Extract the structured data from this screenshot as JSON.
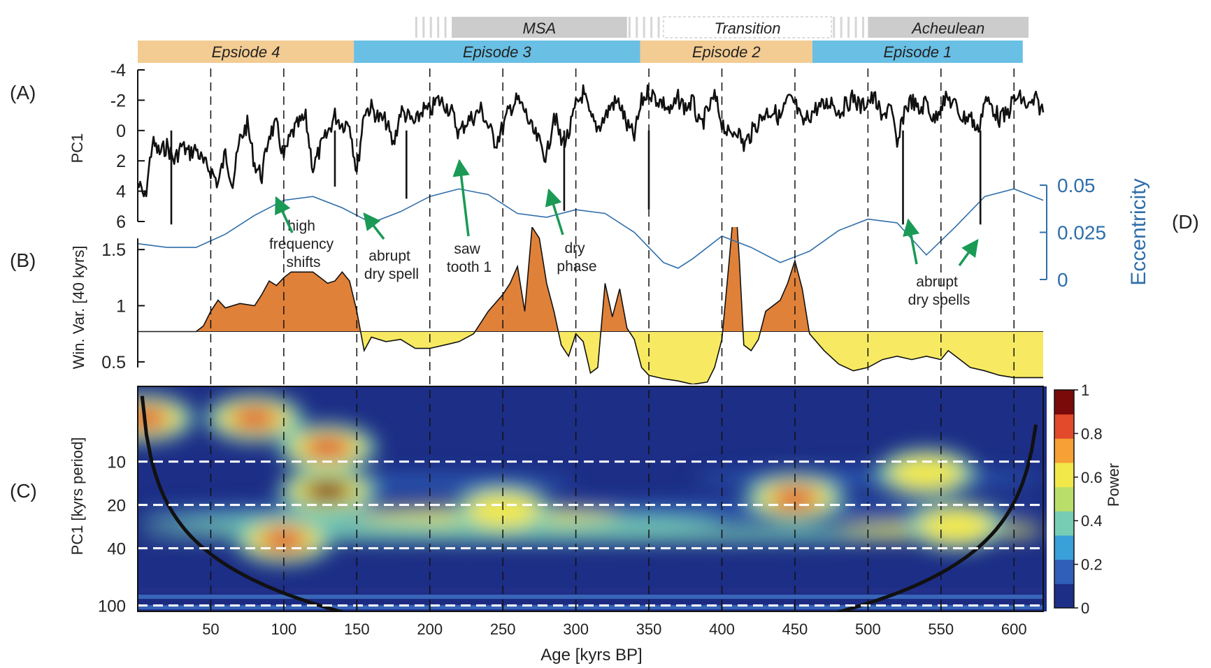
{
  "figure": {
    "panel_labels": {
      "a": "(A)",
      "b": "(B)",
      "c": "(C)",
      "d": "(D)"
    }
  },
  "colors": {
    "episode_orange": "#f3cc93",
    "episode_blue": "#69bfe4",
    "archaeo_gray": "#cccccc",
    "pc1_line": "#111111",
    "eccentricity": "#2f6eaa",
    "variance_high": "#e0813a",
    "variance_low": "#f7ea62",
    "arrow": "#1a9a55",
    "power_low": "#1d2e86",
    "power_high": "#7a0a0a"
  },
  "chart_data": [
    {
      "type": "bar",
      "name": "archaeological-periods",
      "periods": [
        {
          "label": "MSA",
          "start": 215,
          "end": 335
        },
        {
          "label": "Transition",
          "start": 360,
          "end": 475
        },
        {
          "label": "Acheulean",
          "start": 500,
          "end": 610
        }
      ],
      "episodes": [
        {
          "label": "Epsiode 4",
          "start": 0,
          "end": 148,
          "color": "orange"
        },
        {
          "label": "Episode 3",
          "start": 148,
          "end": 344,
          "color": "blue"
        },
        {
          "label": "Episode 2",
          "start": 344,
          "end": 462,
          "color": "orange"
        },
        {
          "label": "Episode 1",
          "start": 462,
          "end": 606,
          "color": "blue"
        }
      ]
    },
    {
      "type": "line",
      "panel": "A",
      "ylabel": "PC1",
      "y_ticks": [
        -4,
        -2,
        0,
        2,
        4,
        6
      ],
      "ylim": [
        -4,
        6
      ],
      "y_inverted": true,
      "x": [
        0,
        5,
        10,
        15,
        20,
        25,
        30,
        35,
        40,
        45,
        50,
        55,
        60,
        65,
        70,
        75,
        80,
        85,
        90,
        95,
        100,
        105,
        110,
        115,
        120,
        125,
        130,
        135,
        140,
        145,
        150,
        155,
        160,
        165,
        170,
        175,
        180,
        185,
        190,
        195,
        200,
        205,
        210,
        215,
        220,
        225,
        230,
        235,
        240,
        245,
        250,
        255,
        260,
        265,
        270,
        275,
        280,
        285,
        290,
        295,
        300,
        305,
        310,
        315,
        320,
        325,
        330,
        335,
        340,
        345,
        350,
        355,
        360,
        365,
        370,
        375,
        380,
        385,
        390,
        395,
        400,
        405,
        410,
        415,
        420,
        425,
        430,
        435,
        440,
        445,
        450,
        455,
        460,
        465,
        470,
        475,
        480,
        485,
        490,
        495,
        500,
        505,
        510,
        515,
        520,
        525,
        530,
        535,
        540,
        545,
        550,
        555,
        560,
        565,
        570,
        575,
        580,
        585,
        590,
        595,
        600,
        605,
        610,
        615,
        620
      ],
      "y": [
        3.5,
        4.5,
        0.8,
        1.5,
        1.0,
        2.0,
        1.0,
        1.5,
        1.2,
        2.2,
        2.6,
        3.5,
        1.5,
        3.5,
        0.6,
        -0.4,
        2.2,
        3.0,
        0.2,
        -0.3,
        1.8,
        0.3,
        -0.4,
        -0.8,
        2.5,
        1.2,
        0.2,
        -1.0,
        -0.4,
        -0.6,
        2.8,
        -1.3,
        -1.5,
        -0.8,
        -0.6,
        1.0,
        -1.3,
        -0.9,
        -0.4,
        -1.4,
        -1.2,
        -2.0,
        -1.8,
        -1.2,
        0.2,
        -0.6,
        -0.9,
        -1.4,
        -0.3,
        0.8,
        -0.2,
        -1.5,
        -2.0,
        -1.3,
        0.0,
        0.8,
        1.8,
        -1.2,
        0.8,
        0.3,
        -1.6,
        -2.5,
        -0.8,
        -0.2,
        -0.9,
        -1.8,
        -1.8,
        -0.3,
        0.4,
        -1.9,
        -2.6,
        -2.1,
        -1.8,
        -1.2,
        -2.1,
        -1.5,
        -1.9,
        -0.2,
        -1.2,
        -2.2,
        -0.6,
        0.4,
        -0.2,
        1.0,
        0.2,
        -0.6,
        -1.2,
        -1.3,
        -0.8,
        -2.0,
        -1.8,
        -0.4,
        -1.0,
        -1.5,
        -1.6,
        -2.0,
        -1.2,
        -1.7,
        -2.2,
        -1.5,
        -2.0,
        -2.1,
        -0.6,
        -2.0,
        1.2,
        -1.4,
        -2.0,
        -1.2,
        -2.0,
        -0.6,
        -1.8,
        -2.1,
        -1.6,
        -0.8,
        -1.0,
        0.1,
        -2.0,
        -1.6,
        -0.8,
        -1.0,
        -2.1,
        -2.1,
        -1.5,
        -2.0,
        -1.2
      ],
      "annotations": [
        "high frequency shifts",
        "abrupt dry spell",
        "saw tooth 1",
        "dry phase",
        "abrupt dry spells"
      ]
    },
    {
      "type": "line",
      "panel": "D",
      "ylabel": "Eccentricity",
      "y_ticks": [
        0,
        0.025,
        0.05
      ],
      "ylim": [
        0,
        0.05
      ],
      "x": [
        0,
        20,
        40,
        60,
        80,
        100,
        120,
        140,
        160,
        180,
        200,
        220,
        240,
        260,
        280,
        300,
        320,
        340,
        360,
        370,
        380,
        400,
        420,
        440,
        460,
        480,
        500,
        520,
        540,
        560,
        580,
        600,
        620
      ],
      "y": [
        0.019,
        0.017,
        0.017,
        0.024,
        0.034,
        0.042,
        0.044,
        0.038,
        0.03,
        0.036,
        0.044,
        0.048,
        0.045,
        0.035,
        0.033,
        0.037,
        0.035,
        0.025,
        0.009,
        0.006,
        0.011,
        0.023,
        0.017,
        0.009,
        0.015,
        0.026,
        0.032,
        0.03,
        0.013,
        0.028,
        0.044,
        0.048,
        0.042
      ]
    },
    {
      "type": "area",
      "panel": "B",
      "ylabel": "Win. Var. [40 kyrs]",
      "y_ticks": [
        0.5,
        1,
        1.5
      ],
      "ylim": [
        0.3,
        1.7
      ],
      "threshold": 0.77,
      "x": [
        0,
        20,
        40,
        45,
        50,
        55,
        60,
        70,
        80,
        85,
        90,
        95,
        100,
        105,
        110,
        115,
        120,
        125,
        130,
        135,
        140,
        145,
        150,
        155,
        160,
        170,
        180,
        190,
        200,
        210,
        220,
        230,
        240,
        250,
        255,
        260,
        265,
        270,
        275,
        280,
        285,
        290,
        295,
        300,
        305,
        310,
        315,
        320,
        325,
        330,
        335,
        340,
        345,
        350,
        360,
        370,
        380,
        390,
        395,
        400,
        405,
        408,
        410,
        412,
        415,
        420,
        425,
        430,
        435,
        440,
        445,
        450,
        455,
        460,
        470,
        480,
        490,
        500,
        510,
        520,
        530,
        540,
        550,
        555,
        560,
        570,
        580,
        590,
        600,
        610,
        620
      ],
      "y": [
        0.77,
        0.77,
        0.77,
        0.82,
        0.95,
        1.05,
        0.98,
        1.02,
        1.0,
        1.1,
        1.22,
        1.18,
        1.25,
        1.3,
        1.3,
        1.3,
        1.3,
        1.25,
        1.2,
        1.22,
        1.3,
        1.22,
        0.95,
        0.6,
        0.72,
        0.68,
        0.7,
        0.62,
        0.62,
        0.65,
        0.68,
        0.75,
        0.95,
        1.1,
        1.2,
        1.35,
        0.95,
        1.7,
        1.6,
        1.2,
        0.95,
        0.65,
        0.55,
        0.75,
        0.68,
        0.4,
        0.45,
        1.2,
        0.9,
        1.15,
        0.8,
        0.7,
        0.45,
        0.38,
        0.35,
        0.33,
        0.3,
        0.32,
        0.45,
        0.7,
        1.4,
        1.85,
        1.8,
        1.4,
        0.65,
        0.6,
        0.7,
        0.95,
        1.0,
        1.05,
        1.2,
        1.4,
        1.15,
        0.75,
        0.6,
        0.48,
        0.42,
        0.45,
        0.52,
        0.55,
        0.52,
        0.55,
        0.52,
        0.6,
        0.55,
        0.45,
        0.42,
        0.38,
        0.36,
        0.36,
        0.36
      ]
    },
    {
      "type": "heatmap",
      "panel": "C",
      "ylabel": "PC1 [kyrs period]",
      "y_ticks": [
        10,
        20,
        40,
        100
      ],
      "dashed_periods": [
        10,
        20,
        40,
        100
      ],
      "y_log": true,
      "xlabel": "Age [kyrs BP]",
      "x_ticks": [
        50,
        100,
        150,
        200,
        250,
        300,
        350,
        400,
        450,
        500,
        550,
        600
      ],
      "xlim": [
        0,
        620
      ],
      "colorbar": {
        "label": "Power",
        "ticks": [
          0,
          0.2,
          0.4,
          0.6,
          0.8,
          1
        ]
      },
      "hotspots": [
        {
          "x": 5,
          "period": 5,
          "power": 0.85
        },
        {
          "x": 80,
          "period": 5,
          "power": 0.85
        },
        {
          "x": 130,
          "period": 8,
          "power": 0.9
        },
        {
          "x": 130,
          "period": 16,
          "power": 1.0
        },
        {
          "x": 100,
          "period": 35,
          "power": 0.85
        },
        {
          "x": 250,
          "period": 22,
          "power": 0.6
        },
        {
          "x": 450,
          "period": 18,
          "power": 0.85
        },
        {
          "x": 540,
          "period": 12,
          "power": 0.6
        },
        {
          "x": 560,
          "period": 28,
          "power": 0.65
        }
      ]
    }
  ],
  "vertical_dashed_ages": [
    50,
    100,
    150,
    200,
    250,
    300,
    350,
    400,
    450,
    500,
    550,
    600
  ]
}
